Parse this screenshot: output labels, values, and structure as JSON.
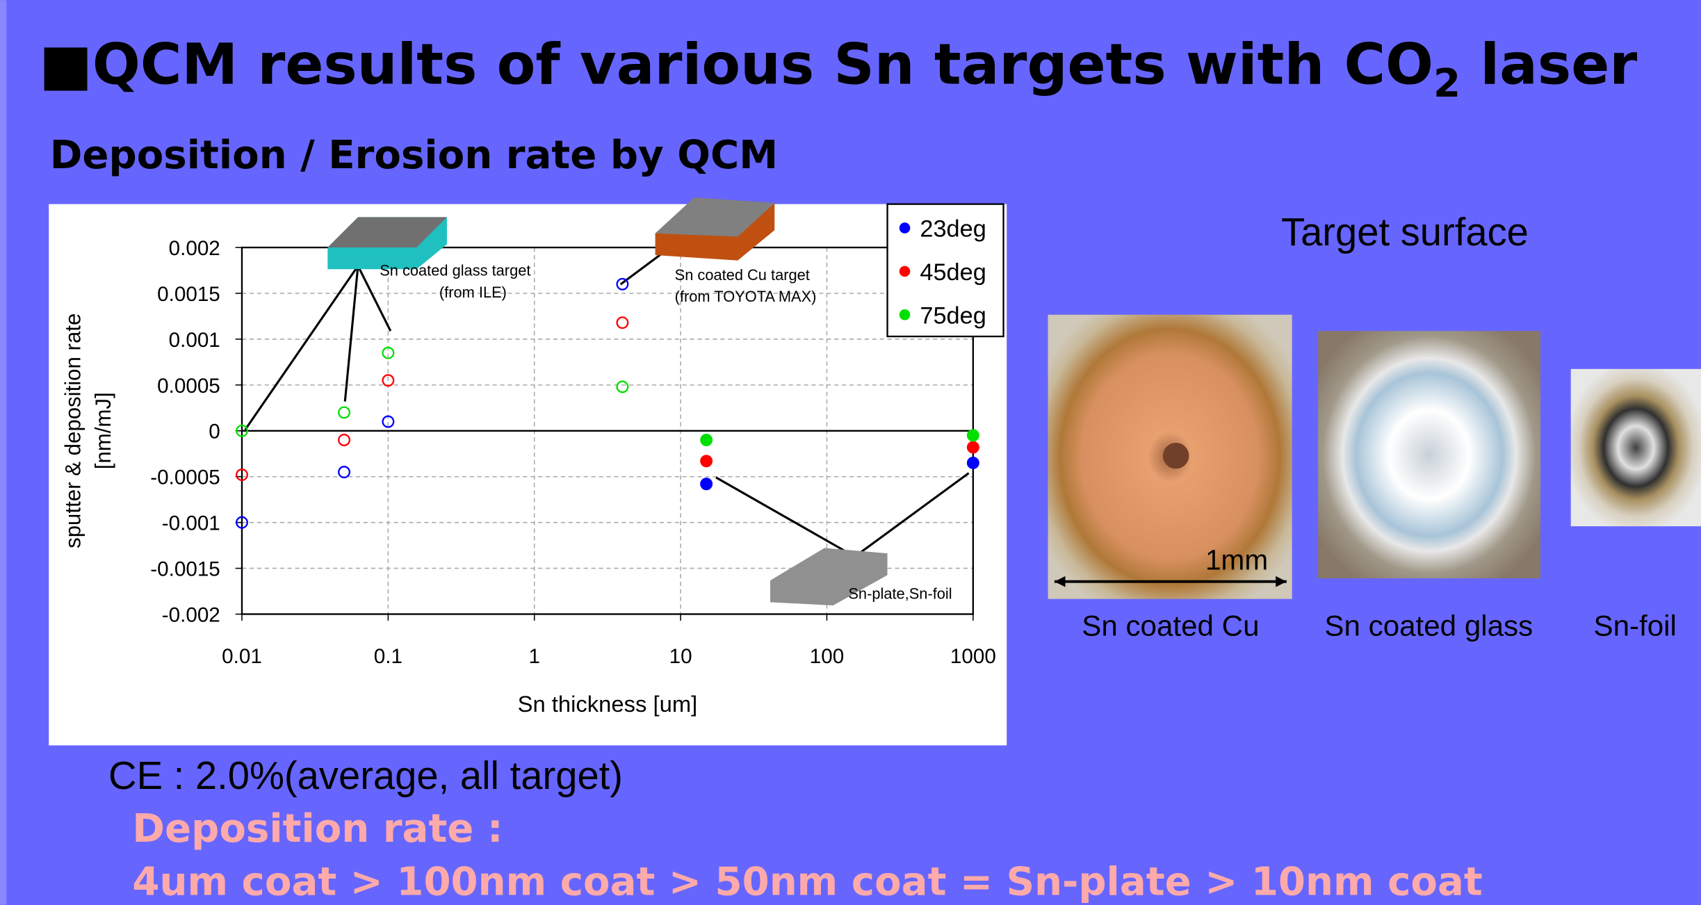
{
  "title": [
    "■QCM results of various Sn targets with CO",
    "2",
    " laser"
  ],
  "subtitle": "Deposition / Erosion rate by QCM",
  "chart_data": {
    "type": "scatter",
    "x_label": "Sn thickness [um]",
    "y_label": [
      "sputter & deposition rate",
      "[nm/mJ]"
    ],
    "x": [
      0.01,
      0.05,
      0.1,
      4,
      15,
      1000
    ],
    "x_log": true,
    "xlim": [
      0.01,
      1000
    ],
    "xticks": [
      0.01,
      0.1,
      1,
      10,
      100,
      1000
    ],
    "ylim": [
      -0.002,
      0.002
    ],
    "yticks": [
      0.002,
      0.0015,
      0.001,
      0.0005,
      0,
      -0.0005,
      -0.001,
      -0.0015,
      -0.002
    ],
    "grid": true,
    "legend": "top-right",
    "series": [
      {
        "name": "23deg",
        "color": "#0000ff",
        "values": [
          -0.001,
          -0.00045,
          0.0001,
          0.0016,
          -0.00058,
          -0.00035
        ],
        "filled": [
          false,
          false,
          false,
          false,
          true,
          true
        ]
      },
      {
        "name": "45deg",
        "color": "#ff0000",
        "values": [
          -0.00048,
          -0.0001,
          0.00055,
          0.00118,
          -0.00033,
          -0.00018
        ],
        "filled": [
          false,
          false,
          false,
          false,
          true,
          true
        ]
      },
      {
        "name": "75deg",
        "color": "#00e000",
        "values": [
          0,
          0.0002,
          0.00085,
          0.00048,
          -0.0001,
          -5e-05
        ],
        "filled": [
          false,
          false,
          false,
          false,
          true,
          true
        ]
      }
    ],
    "annotations": [
      "Sn coated glass target",
      "(from ILE)",
      "Sn coated Cu target",
      "(from TOYOTA MAX)",
      "Sn-plate,Sn-foil"
    ]
  },
  "target_surface": {
    "title": "Target surface",
    "scale": "1mm",
    "captions": [
      "Sn coated Cu",
      "Sn coated glass",
      "Sn-foil"
    ]
  },
  "notes": [
    "CE : 2.0%(average, all target)",
    "Deposition rate :",
    "4um coat > 100nm coat > 50nm coat = Sn-plate > 10nm coat"
  ]
}
